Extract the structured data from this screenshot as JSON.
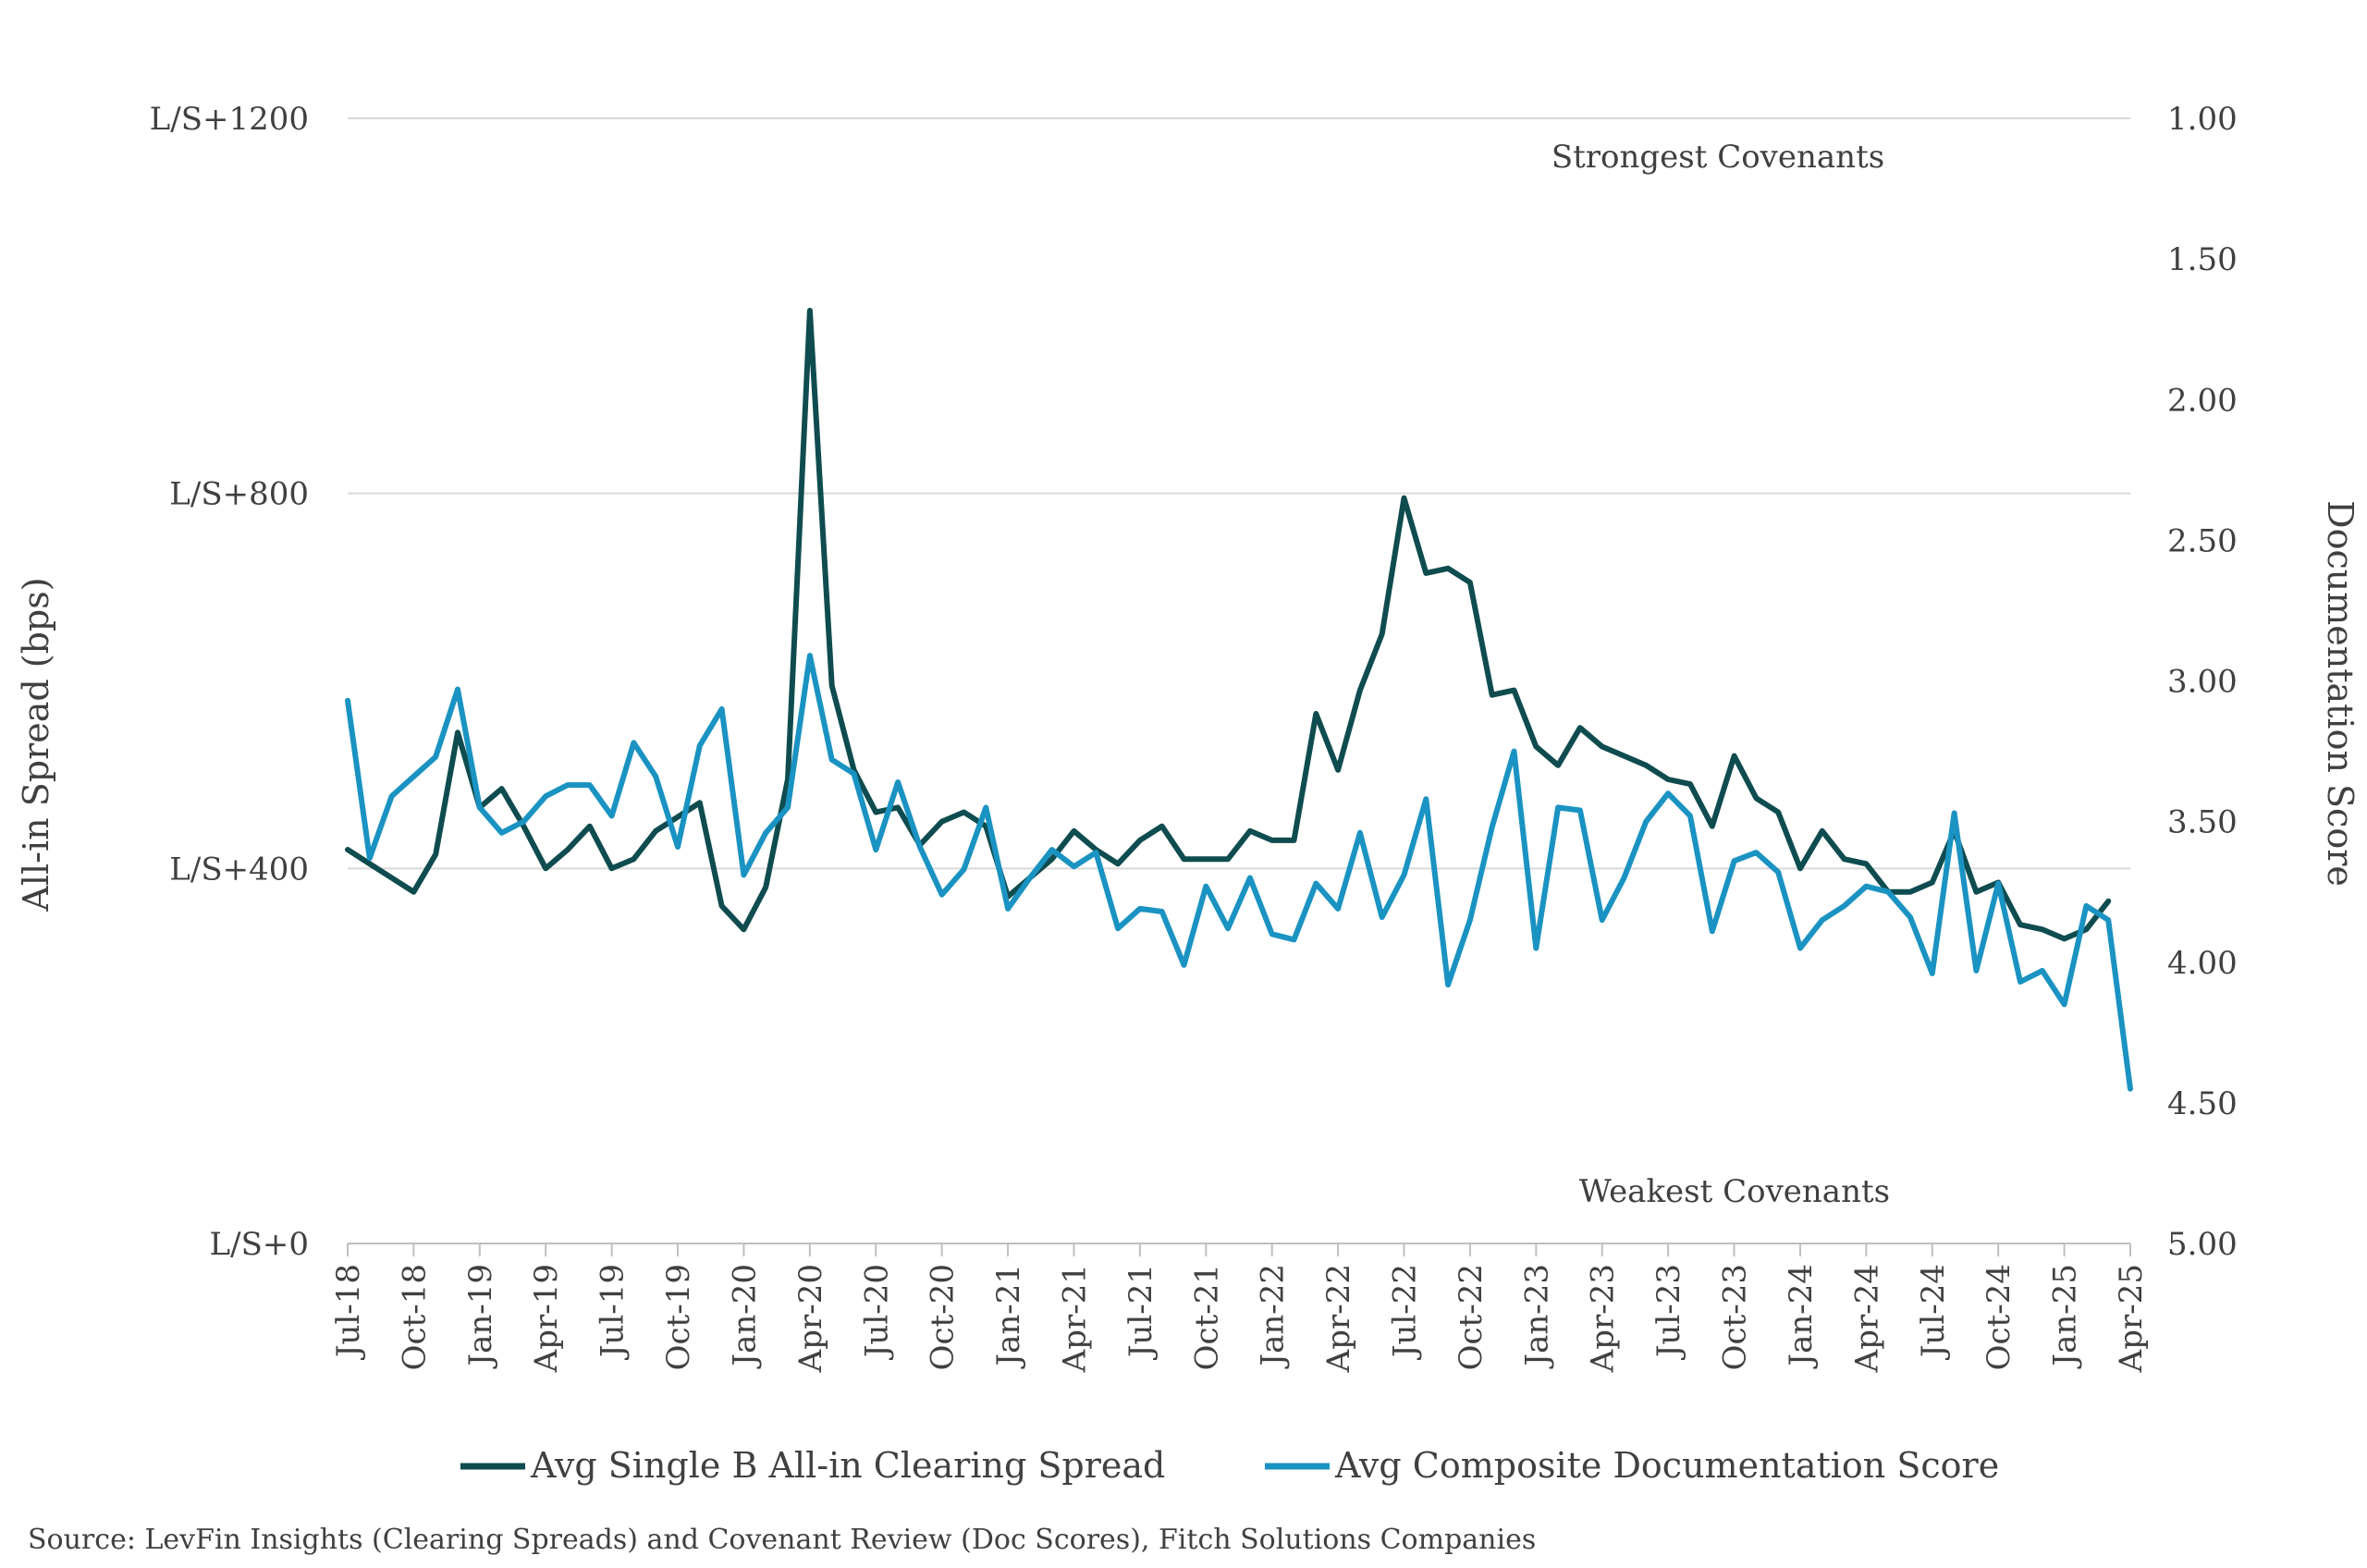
{
  "chart_data": {
    "type": "line",
    "x": [
      "Jul-18",
      "Aug-18",
      "Sep-18",
      "Oct-18",
      "Nov-18",
      "Dec-18",
      "Jan-19",
      "Feb-19",
      "Mar-19",
      "Apr-19",
      "May-19",
      "Jun-19",
      "Jul-19",
      "Aug-19",
      "Sep-19",
      "Oct-19",
      "Nov-19",
      "Dec-19",
      "Jan-20",
      "Feb-20",
      "Mar-20",
      "Apr-20",
      "May-20",
      "Jun-20",
      "Jul-20",
      "Aug-20",
      "Sep-20",
      "Oct-20",
      "Nov-20",
      "Dec-20",
      "Jan-21",
      "Feb-21",
      "Mar-21",
      "Apr-21",
      "May-21",
      "Jun-21",
      "Jul-21",
      "Aug-21",
      "Sep-21",
      "Oct-21",
      "Nov-21",
      "Dec-21",
      "Jan-22",
      "Feb-22",
      "Mar-22",
      "Apr-22",
      "May-22",
      "Jun-22",
      "Jul-22",
      "Aug-22",
      "Sep-22",
      "Oct-22",
      "Nov-22",
      "Dec-22",
      "Jan-23",
      "Feb-23",
      "Mar-23",
      "Apr-23",
      "May-23",
      "Jun-23",
      "Jul-23",
      "Aug-23",
      "Sep-23",
      "Oct-23",
      "Nov-23",
      "Dec-23",
      "Jan-24",
      "Feb-24",
      "Mar-24",
      "Apr-24",
      "May-24",
      "Jun-24",
      "Jul-24",
      "Aug-24",
      "Sep-24",
      "Oct-24",
      "Nov-24",
      "Dec-24",
      "Jan-25",
      "Feb-25",
      "Mar-25",
      "Apr-25"
    ],
    "x_tick_labels": [
      "Jul-18",
      "Oct-18",
      "Jan-19",
      "Apr-19",
      "Jul-19",
      "Oct-19",
      "Jan-20",
      "Apr-20",
      "Jul-20",
      "Oct-20",
      "Jan-21",
      "Apr-21",
      "Jul-21",
      "Oct-21",
      "Jan-22",
      "Apr-22",
      "Jul-22",
      "Oct-22",
      "Jan-23",
      "Apr-23",
      "Jul-23",
      "Oct-23",
      "Jan-24",
      "Apr-24",
      "Jul-24",
      "Oct-24",
      "Jan-25",
      "Apr-25"
    ],
    "left_axis": {
      "label": "All-in Spread (bps)",
      "ylim": [
        0,
        1200
      ],
      "ticks": [
        0,
        400,
        800,
        1200
      ],
      "tick_labels": [
        "L/S+0",
        "L/S+400",
        "L/S+800",
        "L/S+1200"
      ]
    },
    "right_axis": {
      "label": "Documentation Score",
      "ylim": [
        1.0,
        5.0
      ],
      "inverted": true,
      "ticks": [
        1.0,
        1.5,
        2.0,
        2.5,
        3.0,
        3.5,
        4.0,
        4.5,
        5.0
      ],
      "tick_labels": [
        "1.00",
        "1.50",
        "2.00",
        "2.50",
        "3.00",
        "3.50",
        "4.00",
        "4.50",
        "5.00"
      ]
    },
    "grid": true,
    "legend_position": "bottom",
    "series": [
      {
        "name": "Avg Single B All-in Clearing Spread",
        "axis": "left",
        "color": "#0f4c4f",
        "values": [
          420,
          405,
          390,
          375,
          415,
          545,
          465,
          485,
          445,
          400,
          420,
          445,
          400,
          410,
          440,
          455,
          470,
          360,
          335,
          380,
          495,
          995,
          595,
          505,
          460,
          465,
          425,
          450,
          460,
          445,
          370,
          390,
          410,
          440,
          420,
          405,
          430,
          445,
          410,
          410,
          410,
          440,
          430,
          430,
          565,
          505,
          590,
          650,
          795,
          715,
          720,
          705,
          585,
          590,
          530,
          510,
          550,
          530,
          520,
          510,
          495,
          490,
          445,
          520,
          475,
          460,
          400,
          440,
          410,
          405,
          375,
          375,
          385,
          440,
          375,
          385,
          340,
          335,
          325,
          335,
          365,
          335
        ],
        "skip_last_point": true
      },
      {
        "name": "Avg Composite Documentation Score",
        "axis": "right",
        "color": "#1a93c2",
        "values": [
          3.07,
          3.63,
          3.41,
          3.34,
          3.27,
          3.03,
          3.45,
          3.54,
          3.5,
          3.41,
          3.37,
          3.37,
          3.48,
          3.22,
          3.34,
          3.59,
          3.23,
          3.1,
          3.69,
          3.54,
          3.45,
          2.91,
          3.28,
          3.33,
          3.6,
          3.36,
          3.59,
          3.76,
          3.67,
          3.45,
          3.81,
          3.7,
          3.6,
          3.66,
          3.61,
          3.88,
          3.81,
          3.82,
          4.01,
          3.73,
          3.88,
          3.7,
          3.9,
          3.92,
          3.72,
          3.81,
          3.54,
          3.84,
          3.69,
          3.42,
          4.08,
          3.85,
          3.52,
          3.25,
          3.95,
          3.45,
          3.46,
          3.85,
          3.7,
          3.5,
          3.4,
          3.48,
          3.89,
          3.64,
          3.61,
          3.68,
          3.95,
          3.85,
          3.8,
          3.73,
          3.75,
          3.84,
          4.04,
          3.47,
          4.03,
          3.72,
          4.07,
          4.03,
          4.15,
          3.8,
          3.85,
          4.45
        ]
      }
    ],
    "annotations": [
      "Strongest Covenants",
      "Weakest Covenants"
    ],
    "source": "Source: LevFin Insights (Clearing Spreads) and Covenant Review (Doc Scores), Fitch Solutions Companies"
  },
  "colors": {
    "grid": "#d9d9d9",
    "text": "#404040",
    "axis": "#bfbfbf"
  }
}
